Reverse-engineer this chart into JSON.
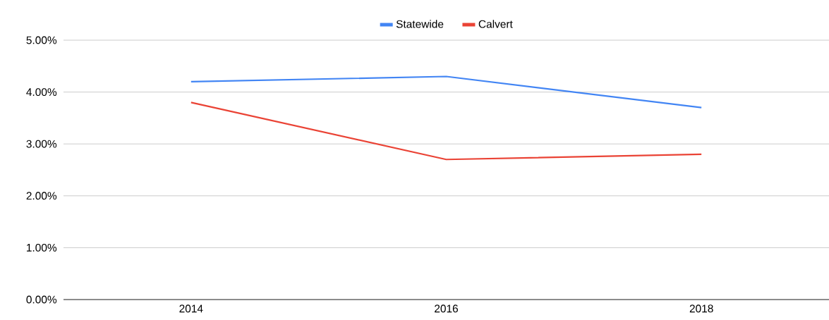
{
  "chart_data": {
    "type": "line",
    "categories": [
      "2014",
      "2016",
      "2018"
    ],
    "series": [
      {
        "name": "Statewide",
        "color": "#4285f4",
        "values": [
          4.2,
          4.3,
          3.7
        ]
      },
      {
        "name": "Calvert",
        "color": "#ea4335",
        "values": [
          3.8,
          2.7,
          2.8
        ]
      }
    ],
    "ylim": [
      0,
      5
    ],
    "yticks": [
      {
        "value": 0,
        "label": "0.00%"
      },
      {
        "value": 1,
        "label": "1.00%"
      },
      {
        "value": 2,
        "label": "2.00%"
      },
      {
        "value": 3,
        "label": "3.00%"
      },
      {
        "value": 4,
        "label": "4.00%"
      },
      {
        "value": 5,
        "label": "5.00%"
      }
    ],
    "grid": "y",
    "legend": "top",
    "marker": "none"
  }
}
